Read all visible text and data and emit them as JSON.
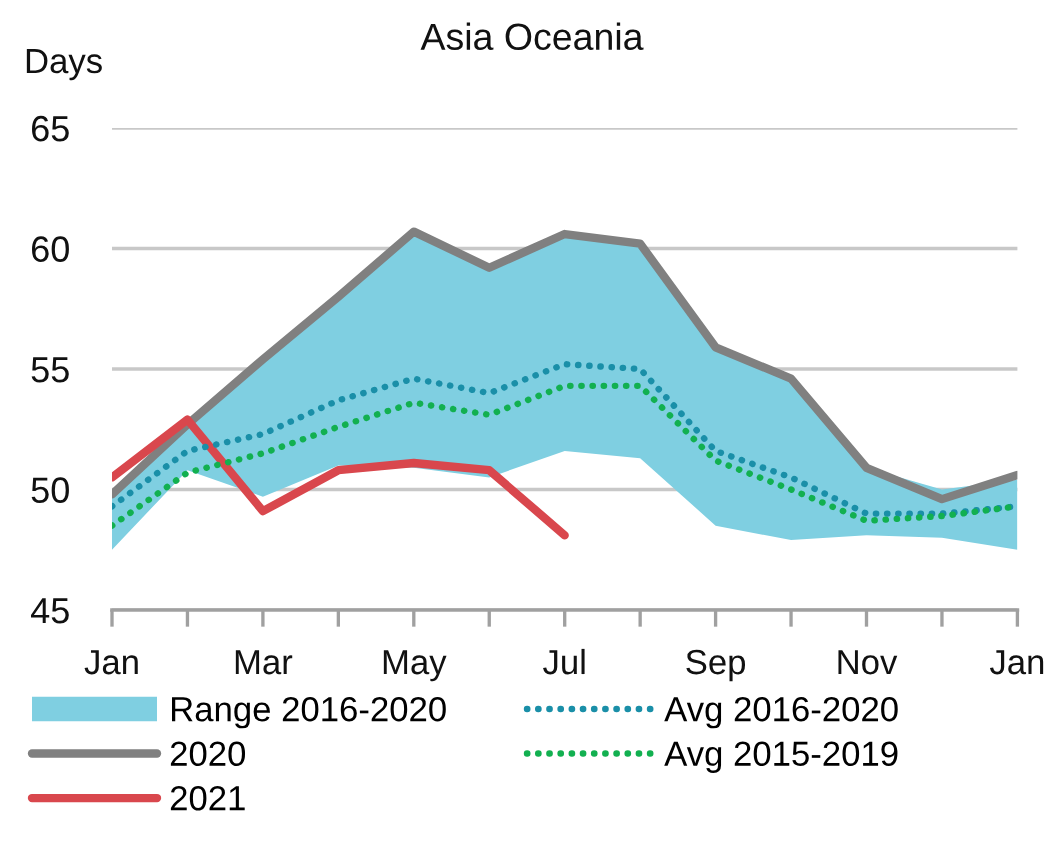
{
  "chart_data": {
    "type": "line",
    "title": "Asia Oceania",
    "ylabel": "Days",
    "categories": [
      "Jan",
      null,
      "Mar",
      null,
      "May",
      null,
      "Jul",
      null,
      "Sep",
      null,
      "Nov",
      null,
      "Jan"
    ],
    "series": [
      {
        "name": "Range 2016-2020",
        "color": "#7fcfe1",
        "values": [
          null,
          null,
          null,
          null,
          null,
          null,
          null,
          null,
          null,
          null,
          null,
          null,
          null
        ],
        "lower": [
          47.5,
          50.8,
          49.7,
          51.0,
          50.9,
          50.5,
          51.6,
          51.3,
          48.5,
          47.9,
          48.1,
          48.0,
          47.5
        ],
        "upper": [
          49.8,
          52.7,
          55.4,
          58.0,
          60.7,
          59.2,
          60.6,
          60.2,
          55.9,
          54.6,
          50.9,
          50.0,
          50.4
        ]
      },
      {
        "name": "2020",
        "color": "#808080",
        "line_style": "solid",
        "values": [
          49.8,
          52.7,
          55.4,
          58.0,
          60.7,
          59.2,
          60.6,
          60.2,
          55.9,
          54.6,
          50.9,
          49.6,
          50.6
        ]
      },
      {
        "name": "2021",
        "color": "#d9474d",
        "line_style": "solid",
        "values": [
          50.5,
          52.9,
          49.1,
          50.8,
          51.1,
          50.8,
          48.1,
          null,
          null,
          null,
          null,
          null,
          null
        ]
      },
      {
        "name": "Avg 2016-2020",
        "color": "#1a8fa8",
        "line_style": "dotted",
        "values": [
          49.3,
          51.6,
          52.3,
          53.7,
          54.6,
          54.0,
          55.2,
          55.0,
          51.6,
          50.5,
          49.0,
          49.0,
          49.3
        ]
      },
      {
        "name": "Avg 2015-2019",
        "color": "#12b050",
        "line_style": "dotted",
        "values": [
          48.5,
          50.7,
          51.5,
          52.6,
          53.6,
          53.1,
          54.3,
          54.3,
          51.2,
          50.0,
          48.7,
          48.9,
          49.3
        ]
      }
    ],
    "ylim": [
      45,
      65
    ],
    "yticks": [
      45,
      50,
      55,
      60,
      65
    ],
    "grid": "y",
    "legend": "bottom"
  }
}
